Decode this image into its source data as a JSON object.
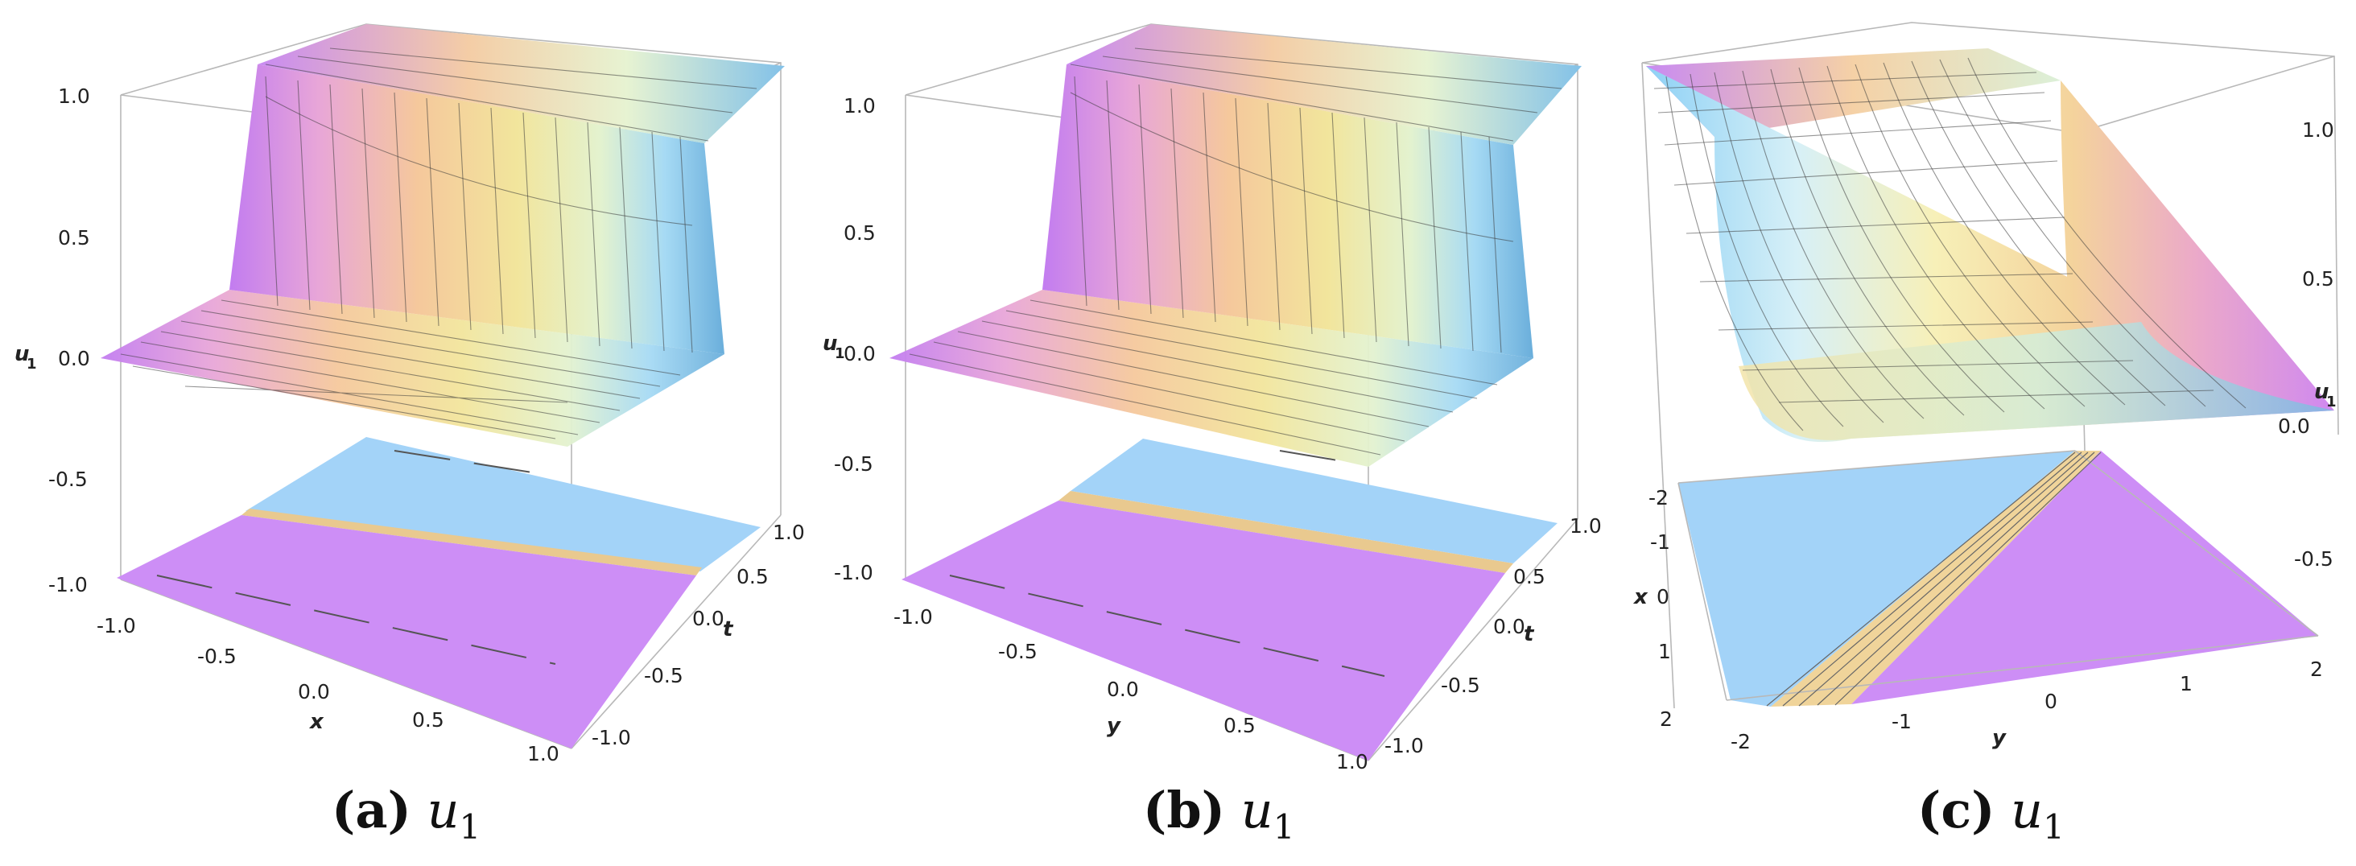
{
  "panels": [
    {
      "id": "a",
      "caption": {
        "label": "(a)",
        "variable": "u",
        "subscript": "1"
      },
      "z_axis": {
        "label": "u",
        "label_sub": "1",
        "ticks": [
          "1.0",
          "0.5",
          "0.0",
          "-0.5",
          "-1.0"
        ]
      },
      "x_axis": {
        "label": "x",
        "ticks": [
          "-1.0",
          "-0.5",
          "0.0",
          "0.5",
          "1.0"
        ]
      },
      "y_axis": {
        "label": "t",
        "ticks": [
          "1.0",
          "0.5",
          "0.0",
          "-0.5",
          "-1.0"
        ]
      }
    },
    {
      "id": "b",
      "caption": {
        "label": "(b)",
        "variable": "u",
        "subscript": "1"
      },
      "z_axis": {
        "label": "u",
        "label_sub": "1",
        "ticks": [
          "1.0",
          "0.5",
          "0.0",
          "-0.5",
          "-1.0"
        ]
      },
      "x_axis": {
        "label": "y",
        "ticks": [
          "-1.0",
          "-0.5",
          "0.0",
          "0.5",
          "1.0"
        ]
      },
      "y_axis": {
        "label": "t",
        "ticks": [
          "1.0",
          "0.5",
          "0.0",
          "-0.5",
          "-1.0"
        ]
      }
    },
    {
      "id": "c",
      "caption": {
        "label": "(c)",
        "variable": "u",
        "subscript": "1"
      },
      "z_axis": {
        "label": "u",
        "label_sub": "1",
        "ticks": [
          "1.0",
          "0.5",
          "0.0",
          "-0.5"
        ]
      },
      "x_axis": {
        "label": "x",
        "ticks": [
          "-2",
          "-1",
          "0",
          "1",
          "2"
        ]
      },
      "y_axis": {
        "label": "y",
        "ticks": [
          "-2",
          "-1",
          "0",
          "1",
          "2"
        ]
      }
    }
  ],
  "colors": {
    "contour_low": "#cf8bf7",
    "contour_high": "#9fd5fb",
    "gradient": [
      "#c67ff0",
      "#e9a8d6",
      "#f4c79a",
      "#f3e49b",
      "#e4f1c8",
      "#a9dcf4",
      "#6fb0dc"
    ]
  }
}
